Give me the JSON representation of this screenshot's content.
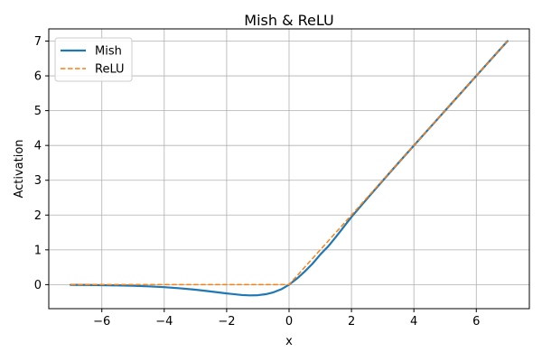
{
  "chart_data": {
    "type": "line",
    "title": "Mish & ReLU",
    "xlabel": "x",
    "ylabel": "Activation",
    "xlim": [
      -7.7,
      7.7
    ],
    "ylim": [
      -0.69,
      7.35
    ],
    "x_ticks": [
      -6,
      -4,
      -2,
      0,
      2,
      4,
      6
    ],
    "y_ticks": [
      0,
      1,
      2,
      3,
      4,
      5,
      6,
      7
    ],
    "x_tick_labels": [
      "−6",
      "−4",
      "−2",
      "0",
      "2",
      "4",
      "6"
    ],
    "y_tick_labels": [
      "0",
      "1",
      "2",
      "3",
      "4",
      "5",
      "6",
      "7"
    ],
    "grid": true,
    "legend": "top-left",
    "x": [
      -7,
      -6.5,
      -6,
      -5.5,
      -5,
      -4.5,
      -4,
      -3.5,
      -3,
      -2.5,
      -2,
      -1.5,
      -1.25,
      -1,
      -0.75,
      -0.5,
      -0.25,
      0,
      0.25,
      0.5,
      0.75,
      1,
      1.25,
      1.5,
      2,
      2.5,
      3,
      3.5,
      4,
      4.5,
      5,
      5.5,
      6,
      6.5,
      7
    ],
    "series": [
      {
        "name": "Mish",
        "color": "#1f77b4",
        "style": "solid",
        "values": [
          -0.0064,
          -0.0098,
          -0.0149,
          -0.0224,
          -0.0336,
          -0.0499,
          -0.0727,
          -0.1041,
          -0.1456,
          -0.1967,
          -0.2525,
          -0.2997,
          -0.3088,
          -0.3034,
          -0.2755,
          -0.2207,
          -0.1327,
          0,
          0.1722,
          0.3752,
          0.6003,
          0.8651,
          1.0954,
          1.3695,
          1.944,
          2.4699,
          2.9865,
          3.4953,
          3.9974,
          4.4989,
          4.9996,
          5.5,
          6,
          6.5,
          7
        ]
      },
      {
        "name": "ReLU",
        "color": "#ff7f0e",
        "style": "dashed",
        "values": [
          0,
          0,
          0,
          0,
          0,
          0,
          0,
          0,
          0,
          0,
          0,
          0,
          0,
          0,
          0,
          0,
          0,
          0,
          0.25,
          0.5,
          0.75,
          1,
          1.25,
          1.5,
          2,
          2.5,
          3,
          3.5,
          4,
          4.5,
          5,
          5.5,
          6,
          6.5,
          7
        ]
      }
    ]
  }
}
